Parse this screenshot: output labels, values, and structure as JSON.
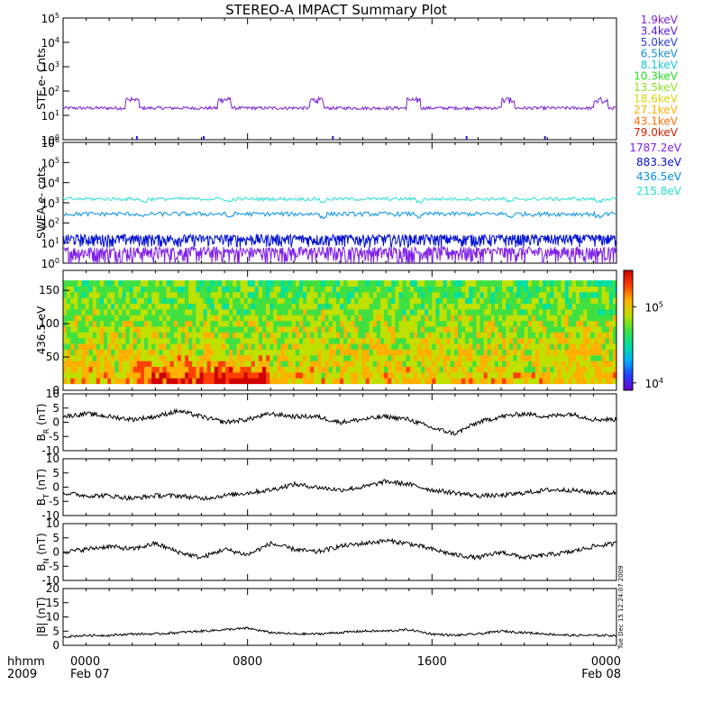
{
  "title": "STEREO-A IMPACT Summary Plot",
  "x_axis": {
    "unit_label": "hhmm",
    "year_label": "2009",
    "ticks": [
      {
        "time": "0000",
        "date": "Feb 07",
        "hours": 0
      },
      {
        "time": "0800",
        "date": "",
        "hours": 8
      },
      {
        "time": "1600",
        "date": "",
        "hours": 16
      },
      {
        "time": "0000",
        "date": "Feb 08",
        "hours": 24
      }
    ]
  },
  "timestamp_vertical": "Tue Dec 15 12:24:07 2009",
  "colors": {
    "ste": [
      "#7a1fd6",
      "#5a1fe0",
      "#2a3fe8",
      "#1a8fe0",
      "#18c8d8",
      "#1ee01e",
      "#8ce02a",
      "#d8d800",
      "#ffb000",
      "#ff7000",
      "#e02000"
    ],
    "swea": [
      "#8020e8",
      "#0010d0",
      "#0090e8",
      "#20e0d0"
    ],
    "colorbar": [
      "#6a00d0",
      "#2040ff",
      "#00b0ff",
      "#00e0a0",
      "#40e040",
      "#c0e000",
      "#ffb000",
      "#ff4000",
      "#d00000"
    ]
  },
  "chart_data": [
    {
      "type": "line",
      "panel": "ste",
      "ylabel": "STE e- Cnts",
      "log_scale": true,
      "ylim": [
        1,
        100000
      ],
      "yticks": [
        "10^0",
        "10^1",
        "10^2",
        "10^3",
        "10^4",
        "10^5"
      ],
      "series": [
        {
          "name": "1.9keV",
          "baseline": 20,
          "periodic_peaks": {
            "values": 50,
            "centers_hours": [
              3.0,
              7.0,
              11.0,
              15.2,
              19.3,
              23.3
            ]
          }
        },
        {
          "name": "3.4keV"
        },
        {
          "name": "5.0keV"
        },
        {
          "name": "6.5keV"
        },
        {
          "name": "8.1keV"
        },
        {
          "name": "10.3keV"
        },
        {
          "name": "13.5keV"
        },
        {
          "name": "18.6keV"
        },
        {
          "name": "27.1keV"
        },
        {
          "name": "43.1keV"
        },
        {
          "name": "79.0keV"
        }
      ]
    },
    {
      "type": "line",
      "panel": "swea",
      "ylabel": "SWEA e- cnts",
      "log_scale": true,
      "ylim": [
        1,
        1000000
      ],
      "yticks": [
        "10^0",
        "10^1",
        "10^2",
        "10^3",
        "10^4",
        "10^5",
        "10^6"
      ],
      "series": [
        {
          "name": "1787.2eV",
          "approx_level": 2
        },
        {
          "name": "883.3eV",
          "approx_level": 12
        },
        {
          "name": "436.5eV",
          "approx_level": 250
        },
        {
          "name": "215.8eV",
          "approx_level": 1400
        }
      ]
    },
    {
      "type": "heatmap",
      "panel": "pad",
      "ylabel": "436.5 eV",
      "ylim": [
        0,
        180
      ],
      "yticks": [
        0,
        50,
        100,
        150
      ],
      "colorbar": {
        "log_scale": true,
        "range": [
          8000,
          300000
        ],
        "ticks": [
          "10^4",
          "10^5"
        ]
      },
      "hot_region": {
        "hours": [
          3.0,
          9.0
        ],
        "degrees": [
          0,
          60
        ]
      }
    },
    {
      "type": "line",
      "panel": "br",
      "ylabel": "B",
      "ylabel_sub": "R",
      "ylabel_unit": "(nT)",
      "ylim": [
        -10,
        10
      ],
      "yticks": [
        -10,
        -5,
        0,
        5,
        10
      ],
      "x": [
        0,
        1,
        2,
        3,
        4,
        5,
        6,
        7,
        8,
        9,
        10,
        11,
        12,
        13,
        14,
        15,
        16,
        17,
        18,
        19,
        20,
        21,
        22,
        23,
        24
      ],
      "values": [
        2,
        3,
        2,
        1,
        2,
        4,
        2,
        0,
        1,
        3,
        2,
        2,
        0,
        1,
        2,
        1,
        -2,
        -4,
        0,
        2,
        3,
        2,
        3,
        1,
        1
      ]
    },
    {
      "type": "line",
      "panel": "bt",
      "ylabel": "B",
      "ylabel_sub": "T",
      "ylabel_unit": "(nT)",
      "ylim": [
        -10,
        10
      ],
      "yticks": [
        -10,
        -5,
        0,
        5,
        10
      ],
      "x": [
        0,
        1,
        2,
        3,
        4,
        5,
        6,
        7,
        8,
        9,
        10,
        11,
        12,
        13,
        14,
        15,
        16,
        17,
        18,
        19,
        20,
        21,
        22,
        23,
        24
      ],
      "values": [
        -2,
        -3,
        -3,
        -4,
        -3,
        -3,
        -4,
        -3,
        -2,
        -1,
        1,
        0,
        -1,
        0,
        2,
        1,
        -1,
        -2,
        -3,
        -3,
        -2,
        -1,
        -1,
        -2,
        -2
      ]
    },
    {
      "type": "line",
      "panel": "bn",
      "ylabel": "B",
      "ylabel_sub": "N",
      "ylabel_unit": "(nT)",
      "ylim": [
        -10,
        10
      ],
      "yticks": [
        -10,
        -5,
        0,
        5,
        10
      ],
      "x": [
        0,
        1,
        2,
        3,
        4,
        5,
        6,
        7,
        8,
        9,
        10,
        11,
        12,
        13,
        14,
        15,
        16,
        17,
        18,
        19,
        20,
        21,
        22,
        23,
        24
      ],
      "values": [
        0,
        1,
        2,
        1,
        3,
        0,
        -2,
        1,
        -1,
        3,
        1,
        0,
        2,
        3,
        4,
        3,
        1,
        -1,
        -2,
        0,
        -2,
        -1,
        0,
        2,
        3
      ]
    },
    {
      "type": "line",
      "panel": "bmag",
      "ylabel": "|B| (nT)",
      "ylim": [
        0,
        20
      ],
      "yticks": [
        0,
        5,
        10,
        15,
        20
      ],
      "x": [
        0,
        1,
        2,
        3,
        4,
        5,
        6,
        7,
        8,
        9,
        10,
        11,
        12,
        13,
        14,
        15,
        16,
        17,
        18,
        19,
        20,
        21,
        22,
        23,
        24
      ],
      "values": [
        3,
        3.5,
        3.5,
        4,
        4,
        4.5,
        5,
        5.5,
        6,
        4.5,
        4,
        4,
        4.5,
        5,
        5,
        5.5,
        4,
        3.5,
        4,
        5,
        4.5,
        4,
        3.5,
        3.5,
        3.5
      ]
    }
  ]
}
